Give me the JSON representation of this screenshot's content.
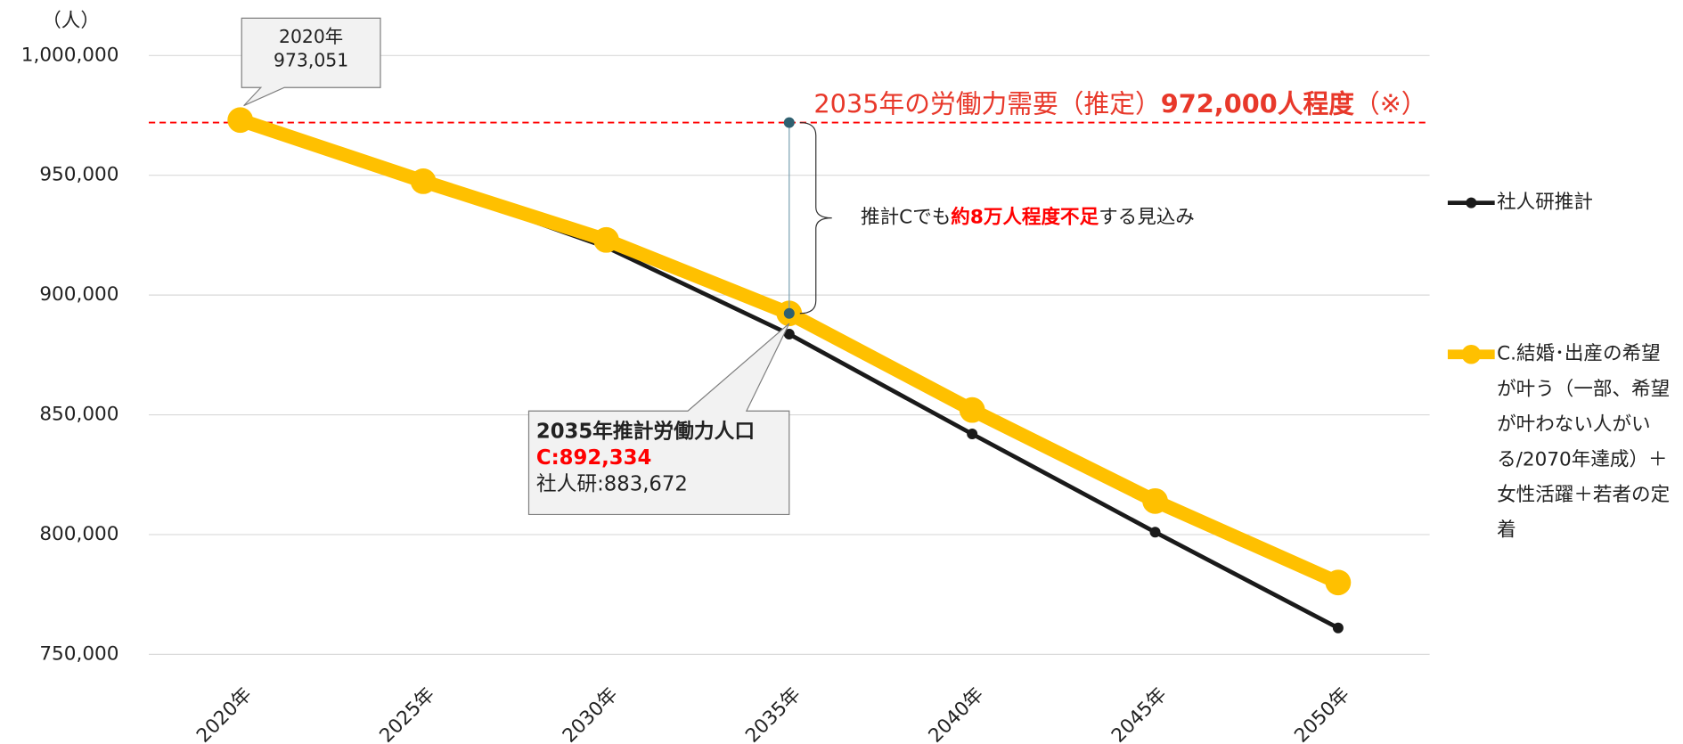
{
  "chart_data": {
    "type": "line",
    "unit_label": "（人）",
    "categories": [
      "2020年",
      "2025年",
      "2030年",
      "2035年",
      "2040年",
      "2045年",
      "2050年"
    ],
    "series": [
      {
        "name": "社人研推計",
        "color": "#1a1a1a",
        "values": [
          973051,
          947000,
          920000,
          883672,
          842000,
          801000,
          761000
        ]
      },
      {
        "name": "C.結婚･出産の希望が叶う（一部、希望が叶わない人がいる/2070年達成）＋女性活躍＋若者の定着",
        "color": "#ffc000",
        "values": [
          973051,
          947500,
          923000,
          892334,
          852000,
          814000,
          780000
        ]
      }
    ],
    "ylim": [
      750000,
      1000000
    ],
    "yticks": [
      {
        "value": 750000,
        "label": "750,000"
      },
      {
        "value": 800000,
        "label": "800,000"
      },
      {
        "value": 850000,
        "label": "850,000"
      },
      {
        "value": 900000,
        "label": "900,000"
      },
      {
        "value": 950000,
        "label": "950,000"
      },
      {
        "value": 1000000,
        "label": "1,000,000"
      }
    ],
    "grid": true,
    "reference_line": {
      "value": 972000,
      "color": "#ff0000",
      "label_parts": [
        "2035年の労働力需要（推定）",
        "972,000人程度",
        "（※）"
      ]
    },
    "callout_2020": [
      "2020年",
      "973,051"
    ],
    "callout_2035": [
      "2035年推計労働力人口",
      "C:892,334",
      "社人研:883,672"
    ],
    "gap_note": [
      "推計Cでも",
      "約8万人程度不足",
      "する見込み"
    ]
  }
}
